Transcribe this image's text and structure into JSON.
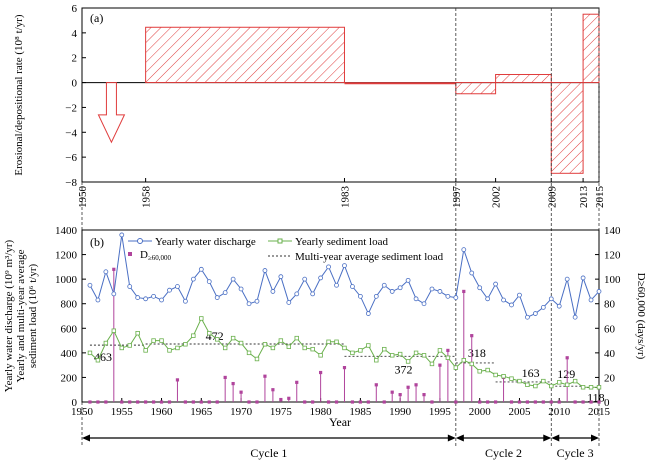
{
  "colors": {
    "depo_red": "#e03c3c",
    "water_blue": "#4a6fc4",
    "sediment_green": "#6ab04c",
    "spike_magenta": "#b0449c",
    "avg_dark": "#333333"
  },
  "panel_a": {
    "label": "(a)",
    "ylabel": "Erosional/depositional rate (10⁸ t/yr)",
    "yticks": [
      "6",
      "4",
      "2",
      "0",
      "−2",
      "−4",
      "−6",
      "−8"
    ],
    "xtick_years": [
      "1950",
      "1958",
      "1983",
      "1997",
      "2002",
      "2009",
      "2013",
      "2015"
    ]
  },
  "panel_b": {
    "label": "(b)",
    "ylabel_line1": "Yearly water discharge (10⁹ m³/yr)",
    "ylabel_line2": "Yearly and multi-year average",
    "ylabel_line3": "sediment load (10⁶ t/yr)",
    "ylabel_right": "D≥60,000 (days/yr)",
    "xlabel": "Year",
    "yticks_left": [
      "1400",
      "1200",
      "1000",
      "800",
      "600",
      "400",
      "200",
      "0"
    ],
    "yticks_right": [
      "140",
      "120",
      "100",
      "80",
      "60",
      "40",
      "20",
      "0"
    ],
    "xticks": [
      "1950",
      "1955",
      "1960",
      "1965",
      "1970",
      "1975",
      "1980",
      "1985",
      "1990",
      "1995",
      "2000",
      "2005",
      "2010",
      "2015"
    ],
    "legend": {
      "water": "Yearly water discharge",
      "sediment": "Yearly sediment load",
      "d": "D",
      "d_sub": "≥60,000",
      "avg": "Multi-year average sediment load"
    },
    "avg_labels": [
      "463",
      "472",
      "372",
      "318",
      "163",
      "129",
      "118"
    ]
  },
  "cycles": {
    "cycle1": "Cycle 1",
    "cycle2": "Cycle 2",
    "cycle3": "Cycle 3"
  },
  "chart_data": [
    {
      "type": "bar",
      "title": "",
      "ylabel": "Erosional/depositional rate (10⁸ t/yr)",
      "ylim": [
        -8,
        6
      ],
      "segments": [
        {
          "start": 1950,
          "end": 1958,
          "value": 0,
          "note": "arrow"
        },
        {
          "start": 1958,
          "end": 1983,
          "value": 4.45
        },
        {
          "start": 1983,
          "end": 1997,
          "value": -0.05
        },
        {
          "start": 1997,
          "end": 2002,
          "value": -0.9
        },
        {
          "start": 2002,
          "end": 2009,
          "value": 0.65
        },
        {
          "start": 2009,
          "end": 2013,
          "value": -7.3
        },
        {
          "start": 2013,
          "end": 2015,
          "value": 5.5
        }
      ]
    },
    {
      "type": "line",
      "xlabel": "Year",
      "xlim": [
        1950,
        2015
      ],
      "ylim_left": [
        0,
        1400
      ],
      "ylim_right": [
        0,
        140
      ],
      "x": [
        1951,
        1952,
        1953,
        1954,
        1955,
        1956,
        1957,
        1958,
        1959,
        1960,
        1961,
        1962,
        1963,
        1964,
        1965,
        1966,
        1967,
        1968,
        1969,
        1970,
        1971,
        1972,
        1973,
        1974,
        1975,
        1976,
        1977,
        1978,
        1979,
        1980,
        1981,
        1982,
        1983,
        1984,
        1985,
        1986,
        1987,
        1988,
        1989,
        1990,
        1991,
        1992,
        1993,
        1994,
        1995,
        1996,
        1997,
        1998,
        1999,
        2000,
        2001,
        2002,
        2003,
        2004,
        2005,
        2006,
        2007,
        2008,
        2009,
        2010,
        2011,
        2012,
        2013,
        2014,
        2015
      ],
      "series": [
        {
          "name": "Yearly water discharge",
          "axis": "left",
          "values": [
            950,
            830,
            1060,
            880,
            1360,
            940,
            850,
            840,
            860,
            830,
            910,
            940,
            820,
            1000,
            1080,
            980,
            850,
            890,
            1000,
            920,
            800,
            820,
            1070,
            900,
            1020,
            810,
            880,
            1000,
            880,
            1010,
            1100,
            950,
            1110,
            940,
            860,
            720,
            860,
            950,
            900,
            930,
            990,
            840,
            800,
            920,
            900,
            860,
            850,
            1240,
            1050,
            930,
            840,
            960,
            830,
            790,
            870,
            690,
            720,
            770,
            840,
            780,
            1000,
            690,
            1010,
            830,
            900
          ]
        },
        {
          "name": "Yearly sediment load",
          "axis": "left",
          "values": [
            400,
            340,
            480,
            580,
            440,
            460,
            560,
            420,
            500,
            500,
            420,
            440,
            470,
            540,
            680,
            560,
            510,
            440,
            520,
            480,
            400,
            350,
            470,
            440,
            500,
            450,
            520,
            440,
            430,
            380,
            490,
            490,
            440,
            400,
            420,
            460,
            340,
            430,
            380,
            390,
            330,
            400,
            380,
            310,
            420,
            360,
            280,
            340,
            310,
            250,
            260,
            220,
            210,
            190,
            170,
            140,
            130,
            170,
            130,
            160,
            140,
            170,
            120,
            120,
            120
          ]
        },
        {
          "name": "D≥60,000",
          "axis": "right",
          "type": "stem",
          "values": [
            0,
            0,
            0,
            108,
            0,
            0,
            0,
            0,
            0,
            0,
            0,
            18,
            0,
            0,
            0,
            0,
            0,
            20,
            15,
            8,
            0,
            0,
            21,
            10,
            2,
            3,
            16,
            0,
            0,
            24,
            0,
            0,
            28,
            0,
            0,
            0,
            14,
            0,
            8,
            6,
            12,
            14,
            6,
            0,
            30,
            42,
            0,
            90,
            54,
            0,
            0,
            0,
            20,
            0,
            0,
            0,
            0,
            0,
            0,
            0,
            36,
            0,
            0,
            0,
            0
          ]
        }
      ],
      "averages": [
        {
          "start": 1951,
          "end": 1958,
          "value": 463
        },
        {
          "start": 1958,
          "end": 1983,
          "value": 472
        },
        {
          "start": 1983,
          "end": 1997,
          "value": 372
        },
        {
          "start": 1997,
          "end": 2002,
          "value": 318
        },
        {
          "start": 2002,
          "end": 2009,
          "value": 163
        },
        {
          "start": 2009,
          "end": 2013,
          "value": 129
        },
        {
          "start": 2013,
          "end": 2015,
          "value": 118
        }
      ],
      "cycles": [
        {
          "name": "Cycle 1",
          "start": 1950,
          "end": 1997
        },
        {
          "name": "Cycle 2",
          "start": 1997,
          "end": 2009
        },
        {
          "name": "Cycle 3",
          "start": 2009,
          "end": 2015
        }
      ]
    }
  ]
}
